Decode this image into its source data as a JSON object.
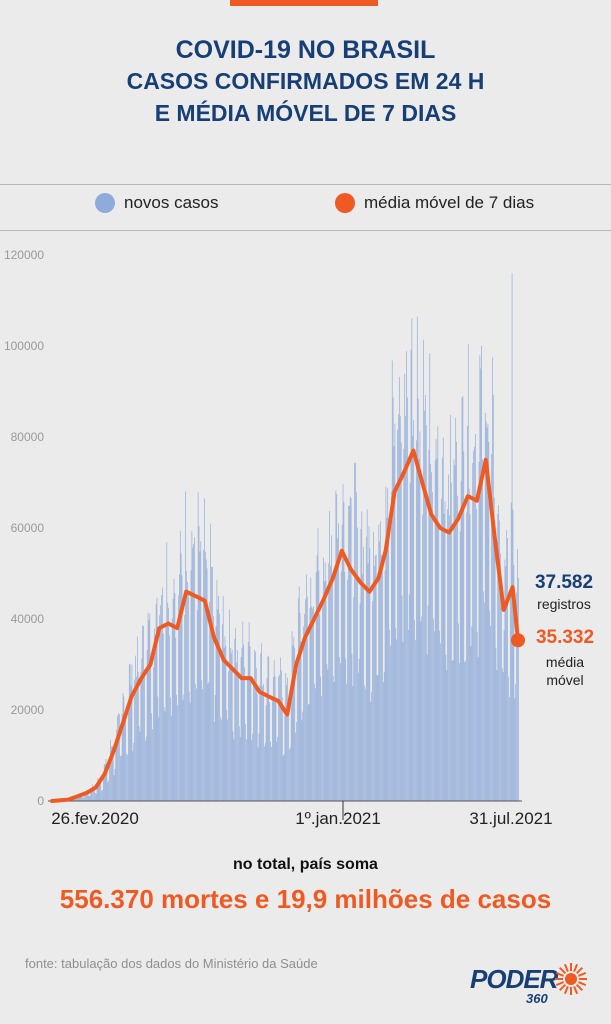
{
  "header": {
    "title_line1": "COVID-19 NO BRASIL",
    "title_line2": "CASOS CONFIRMADOS EM 24 H",
    "title_line3": "E MÉDIA MÓVEL DE 7 DIAS"
  },
  "legend": {
    "bars_label": "novos casos",
    "line_label": "média móvel de 7 dias"
  },
  "colors": {
    "bars": "#8fabd9",
    "line": "#ef5a23",
    "title": "#183f75"
  },
  "chart_data": {
    "type": "bar",
    "y_ticks": [
      "0",
      "20000",
      "40000",
      "60000",
      "80000",
      "100000",
      "120000"
    ],
    "ylim": [
      0,
      120000
    ],
    "x_labels": [
      "26.fev.2020",
      "1º.jan.2021",
      "31.jul.2021"
    ],
    "x_range": [
      "2020-02-26",
      "2021-07-31"
    ],
    "grid": false,
    "legend_position": "top-center",
    "series": [
      {
        "name": "média móvel de 7 dias",
        "kind": "line",
        "dates": [
          "2020-02-26",
          "2020-03-15",
          "2020-03-25",
          "2020-04-05",
          "2020-04-15",
          "2020-04-25",
          "2020-05-05",
          "2020-05-15",
          "2020-05-25",
          "2020-06-05",
          "2020-06-15",
          "2020-06-25",
          "2020-07-05",
          "2020-07-15",
          "2020-07-25",
          "2020-08-05",
          "2020-08-15",
          "2020-08-25",
          "2020-09-05",
          "2020-09-15",
          "2020-09-25",
          "2020-10-05",
          "2020-10-15",
          "2020-10-25",
          "2020-11-05",
          "2020-11-15",
          "2020-11-25",
          "2020-12-05",
          "2020-12-15",
          "2020-12-25",
          "2021-01-05",
          "2021-01-15",
          "2021-01-25",
          "2021-02-05",
          "2021-02-15",
          "2021-02-25",
          "2021-03-05",
          "2021-03-15",
          "2021-03-25",
          "2021-04-05",
          "2021-04-15",
          "2021-04-25",
          "2021-05-05",
          "2021-05-15",
          "2021-05-25",
          "2021-06-05",
          "2021-06-15",
          "2021-06-25",
          "2021-07-05",
          "2021-07-15",
          "2021-07-25",
          "2021-07-31"
        ],
        "values": [
          0,
          300,
          1000,
          1800,
          3000,
          6000,
          11000,
          17000,
          23000,
          27000,
          30000,
          38000,
          39000,
          38000,
          46000,
          45000,
          44000,
          36000,
          31000,
          29000,
          27000,
          27000,
          24000,
          23000,
          22000,
          19000,
          30000,
          36000,
          40000,
          44000,
          49000,
          55000,
          51000,
          48000,
          46000,
          49000,
          55000,
          68000,
          72000,
          77000,
          70000,
          63000,
          60000,
          59000,
          62000,
          67000,
          66000,
          75000,
          58000,
          42000,
          47000,
          35332
        ]
      },
      {
        "name": "novos casos",
        "kind": "bars",
        "note": "daily bars follow the moving average with weekly oscillation",
        "peak": 116000
      }
    ],
    "annotations": [
      {
        "value": "37.582",
        "label": "registros"
      },
      {
        "value": "35.332",
        "label": "média móvel",
        "label_line1": "média",
        "label_line2": "móvel"
      }
    ]
  },
  "summary": {
    "lead": "no total, país soma",
    "main": "556.370 mortes e 19,9 milhões de casos"
  },
  "footer": {
    "source": "fonte: tabulação dos dados do Ministério da Saúde",
    "logo_main": "PODER",
    "logo_sub": "360"
  }
}
